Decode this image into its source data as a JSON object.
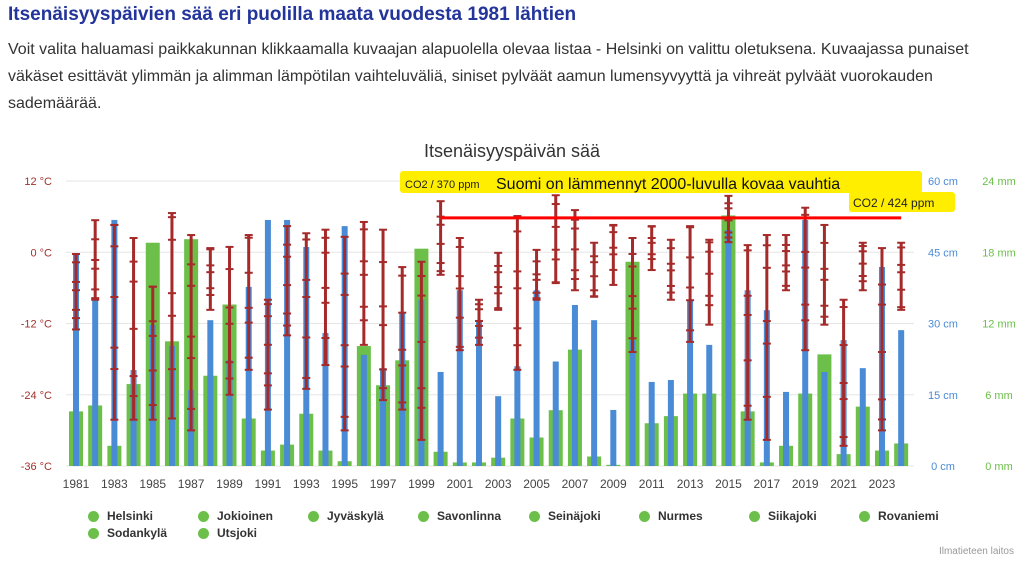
{
  "header": {
    "title": "Itsenäisyyspäivien sää eri puolilla maata vuodesta 1981 lähtien",
    "intro": "Voit valita haluamasi paikkakunnan klikkaamalla kuvaajan alapuolella olevaa listaa - Helsinki on valittu oletuksena. Kuvaajassa punaiset väkäset esittävät ylimmän ja alimman lämpötilan vaihteluväliä, siniset pylväät aamun lumensyvyyttä ja vihreät pylväät vuorokauden sademäärää."
  },
  "colors": {
    "temp": "#a52a2a",
    "snow": "#4a8bd6",
    "precip": "#6cc04a",
    "trend": "#ff0000",
    "highlight": "#ffee00"
  },
  "chart_data": {
    "type": "bar",
    "title": "Itsenäisyyspäivän sää",
    "x": [
      1981,
      1982,
      1983,
      1984,
      1985,
      1986,
      1987,
      1988,
      1989,
      1990,
      1991,
      1992,
      1993,
      1994,
      1995,
      1996,
      1997,
      1998,
      1999,
      2000,
      2001,
      2002,
      2003,
      2004,
      2005,
      2006,
      2007,
      2008,
      2009,
      2010,
      2011,
      2012,
      2013,
      2014,
      2015,
      2016,
      2017,
      2018,
      2019,
      2020,
      2021,
      2022,
      2023,
      2024
    ],
    "x_tick_labels": [
      "1981",
      "1983",
      "1985",
      "1987",
      "1989",
      "1991",
      "1993",
      "1995",
      "1997",
      "1999",
      "2001",
      "2003",
      "2005",
      "2007",
      "2009",
      "2011",
      "2013",
      "2015",
      "2017",
      "2019",
      "2021",
      "2023"
    ],
    "axes": {
      "temp": {
        "range": [
          -36,
          12
        ],
        "ticks": [
          "12 °C",
          "0 °C",
          "-12 °C",
          "-24 °C",
          "-36 °C"
        ]
      },
      "snow": {
        "range": [
          0,
          60
        ],
        "ticks": [
          "60 cm",
          "45 cm",
          "30 cm",
          "15 cm",
          "0 cm"
        ]
      },
      "precip": {
        "range": [
          0,
          24
        ],
        "ticks": [
          "24 mm",
          "18 mm",
          "12 mm",
          "6 mm",
          "0 mm"
        ]
      }
    },
    "series": [
      {
        "name": "Sademäärä (mm)",
        "type": "bar",
        "axis": "precip",
        "values": [
          4.6,
          5.1,
          1.7,
          6.9,
          18.8,
          10.5,
          19.1,
          7.6,
          13.6,
          4.0,
          1.3,
          1.8,
          4.4,
          1.3,
          0.4,
          10.1,
          6.8,
          8.9,
          18.3,
          1.2,
          0.3,
          0.3,
          0.7,
          4.0,
          2.4,
          4.7,
          9.8,
          0.8,
          0.1,
          17.2,
          3.6,
          4.2,
          6.1,
          6.1,
          21.1,
          4.6,
          0.3,
          1.7,
          6.1,
          9.4,
          1.0,
          5.0,
          1.3,
          1.9
        ]
      },
      {
        "name": "Lumensyvyys (cm)",
        "type": "bar",
        "axis": "snow",
        "values": [
          44.8,
          35,
          51.8,
          20.2,
          29.7,
          25.3,
          16,
          30.7,
          22.3,
          37.7,
          51.8,
          51.8,
          46.1,
          28,
          50.5,
          23.4,
          20.6,
          32.4,
          35,
          19.8,
          37,
          30.7,
          14.7,
          21,
          37,
          22,
          33.9,
          30.7,
          11.8,
          26.5,
          17.7,
          18.1,
          35,
          25.5,
          49.7,
          37,
          32.8,
          15.6,
          51.8,
          19.8,
          26.5,
          20.6,
          41.9,
          28.6
        ]
      },
      {
        "name": "Lämpötila max (°C)",
        "type": "errorbar",
        "axis": "temp",
        "values": [
          -0.3,
          5.4,
          4.6,
          2.4,
          -5.8,
          6.6,
          2.9,
          0.7,
          0.9,
          2.9,
          -8,
          4.4,
          3.2,
          3.8,
          2.6,
          5.1,
          3.8,
          -2.5,
          -1.6,
          8.6,
          2.4,
          -8,
          -0.1,
          6.1,
          0.4,
          9.6,
          7.1,
          1.6,
          4.6,
          2.4,
          4.4,
          2.1,
          4.4,
          2.1,
          9.5,
          1.2,
          2.9,
          2.9,
          7.5,
          4.6,
          -8,
          1.6,
          0.7,
          1.6
        ]
      },
      {
        "name": "Lämpötila min (°C)",
        "type": "errorbar",
        "axis": "temp",
        "values": [
          -13,
          -8,
          -28.2,
          -28.2,
          -28.2,
          -28,
          -30,
          -9.7,
          -24,
          -19.8,
          -26.5,
          -14,
          -23,
          -19,
          -30,
          -15.6,
          -24.9,
          -26.5,
          -31.6,
          -3.8,
          -16.5,
          -15.6,
          -9.7,
          -19.8,
          -8,
          -5.2,
          -6.4,
          -7.5,
          -5.5,
          -16.8,
          -3,
          -8,
          -15.1,
          -12.2,
          1.7,
          -28.2,
          -31.6,
          -6.4,
          -16.5,
          -12.2,
          -32.6,
          -6.4,
          -30,
          -9.7
        ]
      }
    ],
    "trend_line": {
      "from_year": 2000,
      "to_year": 2024,
      "value": 5.8
    },
    "annotations": {
      "main": "Suomi on lämmennyt 2000-luvulla kovaa vauhtia",
      "co2_start": "CO2 / 370 ppm",
      "co2_end": "CO2 / 424 ppm"
    },
    "legend": [
      "Helsinki",
      "Jokioinen",
      "Jyväskylä",
      "Savonlinna",
      "Seinäjoki",
      "Nurmes",
      "Siikajoki",
      "Rovaniemi",
      "Sodankylä",
      "Utsjoki"
    ],
    "legend_placement": "bottom"
  },
  "credit": "Ilmatieteen laitos"
}
